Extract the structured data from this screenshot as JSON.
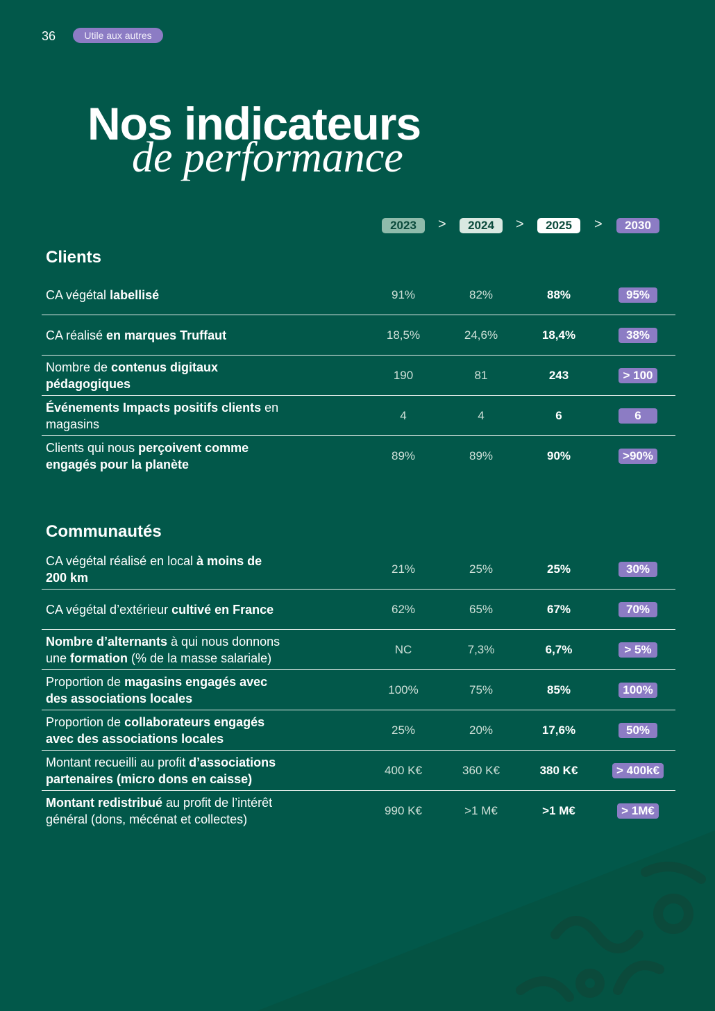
{
  "header": {
    "page_number": "36",
    "tag": "Utile aux autres"
  },
  "title": {
    "line1": "Nos indicateurs",
    "line2": "de performance"
  },
  "years": [
    "2023",
    "2024",
    "2025",
    "2030"
  ],
  "separator": ">",
  "sections": [
    {
      "title": "Clients",
      "rows": [
        {
          "label": [
            {
              "text": "CA végétal ",
              "bold": false
            },
            {
              "text": "labellisé",
              "bold": true
            }
          ],
          "values": [
            "91%",
            "82%",
            "88%",
            "95%"
          ]
        },
        {
          "label": [
            {
              "text": "CA réalisé ",
              "bold": false
            },
            {
              "text": "en marques Truffaut",
              "bold": true
            }
          ],
          "values": [
            "18,5%",
            "24,6%",
            "18,4%",
            "38%"
          ]
        },
        {
          "label": [
            {
              "text": "Nombre de ",
              "bold": false
            },
            {
              "text": "contenus digitaux pédagogiques",
              "bold": true
            }
          ],
          "values": [
            "190",
            "81",
            "243",
            "> 100"
          ]
        },
        {
          "label": [
            {
              "text": "Événements Impacts positifs clients",
              "bold": true
            },
            {
              "text": " en magasins",
              "bold": false
            }
          ],
          "values": [
            "4",
            "4",
            "6",
            "6"
          ]
        },
        {
          "label": [
            {
              "text": "Clients qui nous ",
              "bold": false
            },
            {
              "text": "perçoivent comme engagés pour la planète",
              "bold": true
            }
          ],
          "values": [
            "89%",
            "89%",
            "90%",
            ">90%"
          ]
        }
      ]
    },
    {
      "title": "Communautés",
      "rows": [
        {
          "label": [
            {
              "text": "CA végétal réalisé en local ",
              "bold": false
            },
            {
              "text": "à moins de 200 km",
              "bold": true
            }
          ],
          "values": [
            "21%",
            "25%",
            "25%",
            "30%"
          ]
        },
        {
          "label": [
            {
              "text": "CA végétal d’extérieur ",
              "bold": false
            },
            {
              "text": "cultivé en France",
              "bold": true
            }
          ],
          "values": [
            "62%",
            "65%",
            "67%",
            "70%"
          ]
        },
        {
          "label": [
            {
              "text": "Nombre d’alternants",
              "bold": true
            },
            {
              "text": " à qui nous donnons une ",
              "bold": false
            },
            {
              "text": "formation",
              "bold": true
            },
            {
              "text": " (% de la masse salariale)",
              "bold": false
            }
          ],
          "values": [
            "NC",
            "7,3%",
            "6,7%",
            "> 5%"
          ]
        },
        {
          "label": [
            {
              "text": "Proportion de ",
              "bold": false
            },
            {
              "text": "magasins engagés avec des associations locales",
              "bold": true
            }
          ],
          "values": [
            "100%",
            "75%",
            "85%",
            "100%"
          ]
        },
        {
          "label": [
            {
              "text": "Proportion de ",
              "bold": false
            },
            {
              "text": "collaborateurs engagés avec des associations locales",
              "bold": true
            }
          ],
          "values": [
            "25%",
            "20%",
            "17,6%",
            "50%"
          ]
        },
        {
          "label": [
            {
              "text": "Montant recueilli au profit ",
              "bold": false
            },
            {
              "text": "d’associations partenaires (micro dons en caisse)",
              "bold": true
            }
          ],
          "values": [
            "400 K€",
            "360 K€",
            "380 K€",
            "> 400k€"
          ]
        },
        {
          "label": [
            {
              "text": "Montant redistribué",
              "bold": true
            },
            {
              "text": " au profit de l’intérêt général (dons, mécénat et collectes)",
              "bold": false
            }
          ],
          "values": [
            "990 K€",
            ">1 M€",
            ">1 M€",
            "> 1M€"
          ]
        }
      ]
    }
  ]
}
